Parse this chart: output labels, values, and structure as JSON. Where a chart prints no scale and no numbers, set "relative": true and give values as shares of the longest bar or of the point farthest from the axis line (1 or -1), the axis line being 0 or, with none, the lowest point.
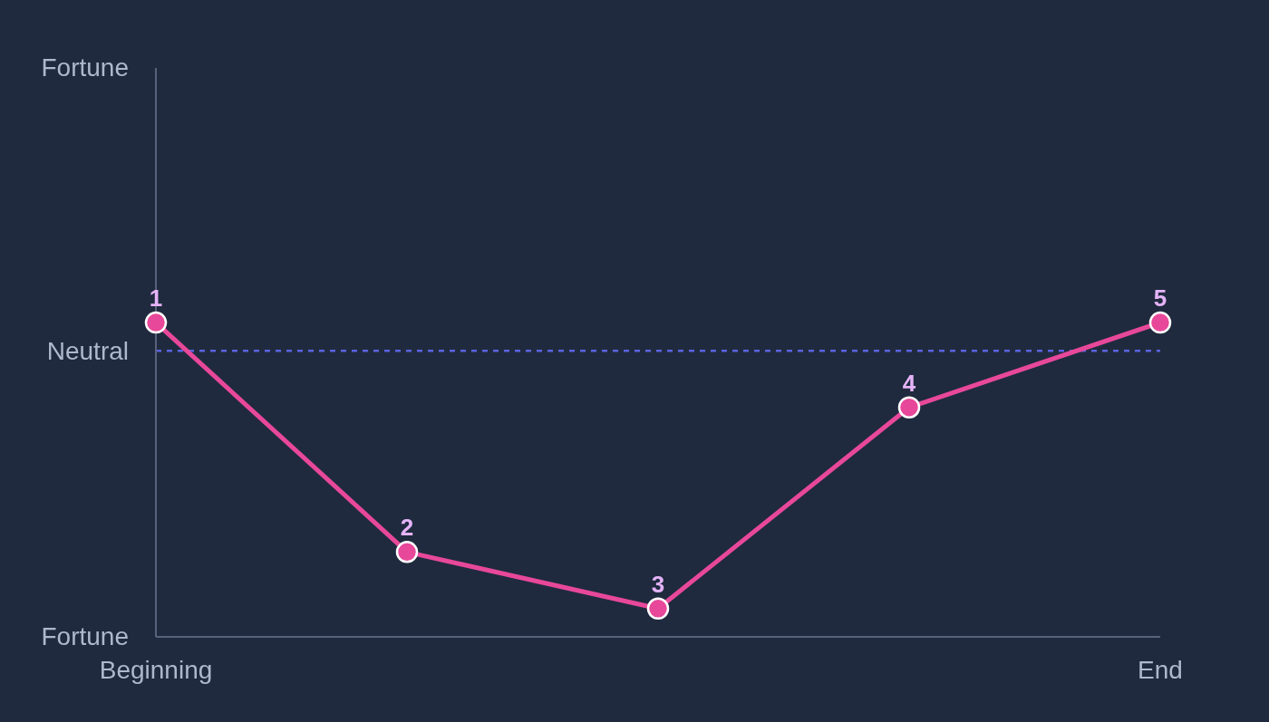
{
  "chart_data": {
    "type": "line",
    "relative": true,
    "categories": [
      "Beginning",
      null,
      null,
      null,
      "End"
    ],
    "series": [
      {
        "color": "#e8489a",
        "values": [
          1,
          0.27,
          0.09,
          0.73,
          1
        ]
      }
    ],
    "ref_lines": [
      {
        "axis": "y",
        "value": 0.91,
        "color": "#5b63e0",
        "line_style": "dashed",
        "label": "Neutral"
      }
    ],
    "annotations": [
      "Fortune",
      "Fortune",
      {
        "text": "1",
        "y": 1
      },
      {
        "text": "2",
        "y": 0.27
      },
      {
        "text": "3",
        "y": 0.09
      },
      {
        "text": "4",
        "y": 0.73
      },
      {
        "text": "5",
        "y": 1
      }
    ],
    "marker": "circle",
    "line_style": "solid",
    "grid": false,
    "legend": false
  }
}
